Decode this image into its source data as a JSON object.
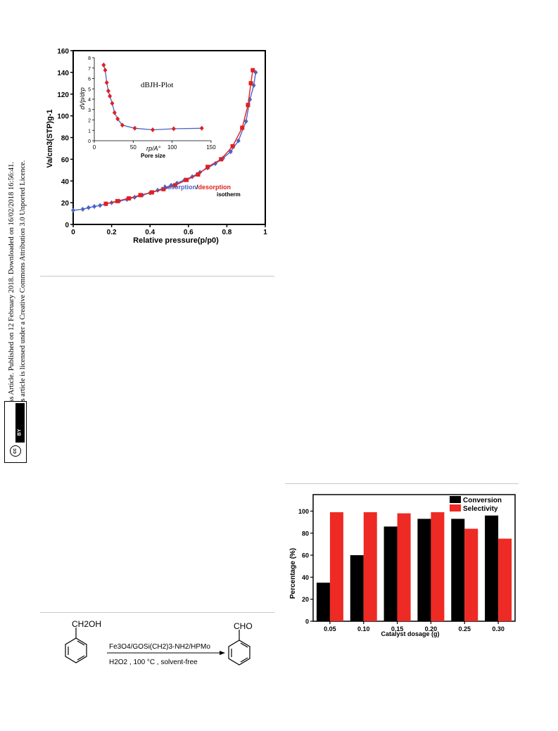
{
  "sidebar": {
    "line1": "Open Access Article. Published on 12 February 2018. Downloaded on 16/02/2018 16:56:41.",
    "line2": "This article is licensed under a Creative Commons Attribution 3.0 Unported Licence.",
    "cc_label": "cc",
    "by_label": "BY"
  },
  "figure1": {
    "ylabel": "Va/cm3(STP)g-1",
    "xlabel": "Relative pressure(p/p0)",
    "legend_adsorption": "Adsorption",
    "legend_sep": "/",
    "legend_desorption": "desorption",
    "legend_line2": "isotherm",
    "colors": {
      "adsorption": "#4a63c4",
      "desorption": "#e02020"
    },
    "chart_data": {
      "type": "line",
      "xlim": [
        0,
        1
      ],
      "ylim": [
        0,
        160
      ],
      "x_ticks": [
        "0",
        "0.2",
        "0.4",
        "0.6",
        "0.8",
        "1"
      ],
      "y_ticks": [
        "0",
        "20",
        "40",
        "60",
        "80",
        "100",
        "120",
        "140",
        "160"
      ],
      "series": [
        {
          "name": "Adsorption",
          "x": [
            0.0,
            0.05,
            0.08,
            0.11,
            0.14,
            0.17,
            0.2,
            0.24,
            0.28,
            0.32,
            0.36,
            0.4,
            0.44,
            0.48,
            0.51,
            0.54,
            0.58,
            0.62,
            0.66,
            0.7,
            0.74,
            0.78,
            0.82,
            0.86,
            0.9,
            0.92,
            0.94,
            0.95
          ],
          "y": [
            13,
            14,
            15.5,
            16.5,
            17.5,
            19,
            20,
            21.5,
            23,
            25,
            27,
            29,
            31.5,
            34,
            36,
            38,
            41,
            44,
            48,
            52,
            56,
            61,
            67,
            77,
            95,
            115,
            128,
            140
          ]
        },
        {
          "name": "desorption",
          "x": [
            0.17,
            0.23,
            0.29,
            0.35,
            0.41,
            0.47,
            0.53,
            0.59,
            0.65,
            0.7,
            0.77,
            0.83,
            0.88,
            0.91,
            0.925,
            0.935
          ],
          "y": [
            19,
            21.5,
            24,
            27,
            29.5,
            32.5,
            36,
            41,
            46,
            53,
            60,
            72,
            89,
            110,
            130,
            142
          ]
        }
      ]
    },
    "inset": {
      "title": "dBJH-Plot",
      "ylabel": "dVp/drp",
      "xlabel": "rp/A°",
      "xlabel2": "Pore size",
      "x_ticks": [
        "0",
        "50",
        "100",
        "150"
      ],
      "y_ticks": [
        "0",
        "1",
        "2",
        "3",
        "4",
        "5",
        "6",
        "7",
        "8"
      ],
      "chart_data": {
        "type": "line",
        "xlim": [
          0,
          150
        ],
        "ylim": [
          0,
          8
        ],
        "series": [
          {
            "name": "",
            "x": [
              12,
              14,
              16,
              18,
              20,
              23,
              26,
              30,
              36,
              52,
              75,
              102,
              138
            ],
            "y": [
              7.3,
              6.8,
              5.6,
              4.8,
              4.3,
              3.6,
              2.7,
              2.1,
              1.5,
              1.2,
              1.05,
              1.15,
              1.2
            ]
          }
        ]
      }
    }
  },
  "scheme": {
    "reactant_group": "CH2OH",
    "product_group": "CHO",
    "catalyst": "Fe3O4/GOSi(CH2)3-NH2/HPMo",
    "conditions": "H2O2 ,   100 °C , solvent-free"
  },
  "figure2": {
    "ylabel": "Percentage (%)",
    "xlabel": "Catalyst dosage (g)",
    "colors": {
      "conversion": "#000000",
      "selectivity": "#ee2a24"
    },
    "chart_data": {
      "type": "bar",
      "categories": [
        "0.05",
        "0.10",
        "0.15",
        "0.20",
        "0.25",
        "0.30"
      ],
      "ylim": [
        0,
        115
      ],
      "y_ticks": [
        "0",
        "20",
        "40",
        "60",
        "80",
        "100"
      ],
      "legend_position": "top-right",
      "series": [
        {
          "name": "Conversion",
          "values": [
            35,
            60,
            86,
            93,
            93,
            96
          ]
        },
        {
          "name": "Selectivity",
          "values": [
            99,
            99,
            98,
            99,
            84,
            75
          ]
        }
      ]
    }
  }
}
